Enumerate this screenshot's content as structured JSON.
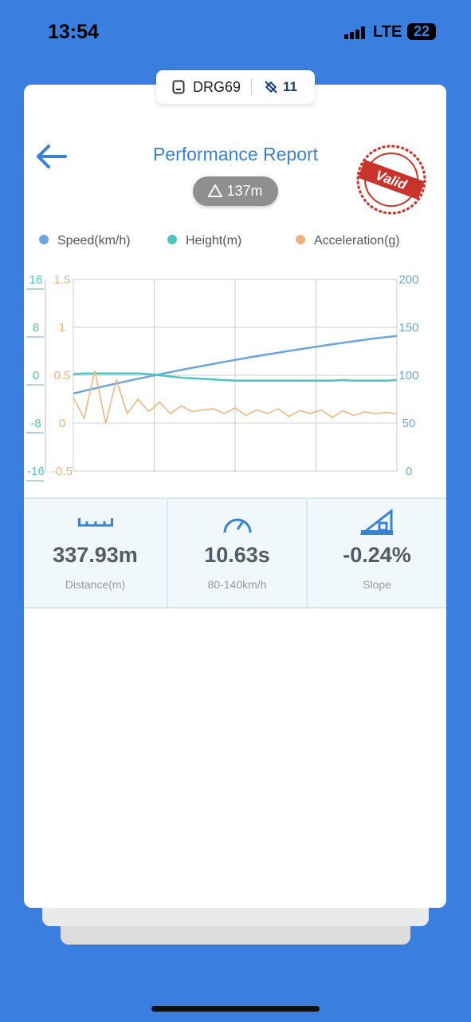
{
  "status_bar": {
    "time": "13:54",
    "network": "LTE",
    "battery": "22"
  },
  "device_chip": {
    "name": "DRG69",
    "satellites": "11"
  },
  "header": {
    "title": "Performance Report",
    "altitude": "137m",
    "stamp": "Valid"
  },
  "chart_data": {
    "type": "line",
    "grid": true,
    "ylim": [
      -16,
      16
    ],
    "yticks": [
      -16,
      -8,
      0,
      8,
      16
    ],
    "y2lim": [
      0,
      200
    ],
    "y2ticks": [
      0,
      50,
      100,
      150,
      200
    ],
    "y3lim": [
      -0.5,
      1.5
    ],
    "y3ticks": [
      -0.5,
      0,
      0.5,
      1,
      1.5
    ],
    "series": [
      {
        "name": "Speed(km/h)",
        "color": "#6aa5e0",
        "axis": "y2",
        "values": [
          81,
          83.7,
          86.3,
          88.9,
          91.4,
          93.9,
          96.3,
          98.7,
          101,
          103.3,
          105.5,
          107.7,
          109.8,
          111.9,
          114,
          116,
          118,
          119.9,
          121.8,
          123.6,
          125.4,
          127.2,
          128.9,
          130.6,
          132.3,
          133.9,
          135.5,
          137,
          138.5,
          139.8,
          141
        ]
      },
      {
        "name": "Height(m)",
        "color": "#4fc4c0",
        "axis": "y",
        "values": [
          0.2,
          0.3,
          0.3,
          0.3,
          0.3,
          0.3,
          0.3,
          0.2,
          0.0,
          -0.2,
          -0.4,
          -0.5,
          -0.6,
          -0.7,
          -0.8,
          -0.9,
          -0.9,
          -0.9,
          -0.9,
          -0.9,
          -0.9,
          -0.9,
          -0.9,
          -0.9,
          -0.9,
          -0.8,
          -0.9,
          -0.9,
          -0.9,
          -0.9,
          -0.8
        ]
      },
      {
        "name": "Acceleration(g)",
        "color": "#f0b27a",
        "axis": "y3",
        "values": [
          0.27,
          0.05,
          0.55,
          0.0,
          0.45,
          0.1,
          0.25,
          0.12,
          0.22,
          0.1,
          0.18,
          0.12,
          0.14,
          0.15,
          0.1,
          0.16,
          0.08,
          0.14,
          0.1,
          0.15,
          0.07,
          0.13,
          0.1,
          0.14,
          0.06,
          0.13,
          0.08,
          0.12,
          0.1,
          0.11,
          0.1
        ]
      }
    ]
  },
  "stats": [
    {
      "value": "337.93m",
      "label": "Distance(m)"
    },
    {
      "value": "10.63s",
      "label": "80-140km/h"
    },
    {
      "value": "-0.24%",
      "label": "Slope"
    }
  ]
}
